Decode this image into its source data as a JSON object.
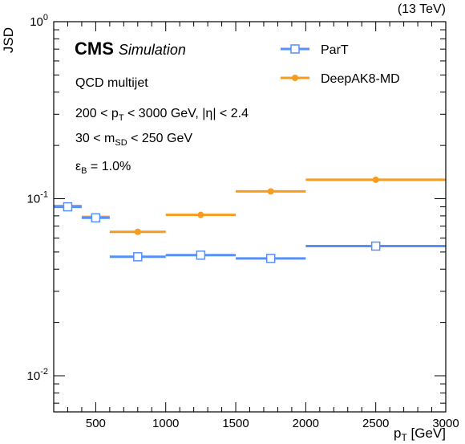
{
  "header": {
    "lumi": "(13 TeV)",
    "cms": "CMS",
    "simulation": "Simulation"
  },
  "annotations": {
    "line1": "QCD multijet",
    "line2_a": "200 < p",
    "line2_sub": "T",
    "line2_b": " < 3000 GeV, |η| < 2.4",
    "line3_a": "30 < m",
    "line3_sub": "SD",
    "line3_b": " < 250 GeV",
    "line4_a": "ε",
    "line4_sub": "B",
    "line4_b": " = 1.0%"
  },
  "axes": {
    "xlabel_main": "p",
    "xlabel_sub": "T",
    "xlabel_unit": " [GeV]",
    "ylabel": "JSD",
    "xticks": [
      "500",
      "1000",
      "1500",
      "2000",
      "2500",
      "3000"
    ],
    "yticks": [
      {
        "base": "10",
        "exp": "-2"
      },
      {
        "base": "10",
        "exp": "-1"
      },
      {
        "base": "1",
        "exp": "0",
        "text": "10",
        "sup": "0"
      }
    ]
  },
  "colors": {
    "ParT": "#5790fc",
    "DeepAK8-MD": "#f89c20"
  },
  "chart_data": {
    "type": "scatter",
    "xlabel": "pT [GeV]",
    "ylabel": "JSD",
    "xlim": [
      200,
      3000
    ],
    "ylim": [
      0.005,
      1
    ],
    "yscale": "log",
    "legend_position": "top-right",
    "bins": [
      [
        200,
        400
      ],
      [
        400,
        600
      ],
      [
        600,
        1000
      ],
      [
        1000,
        1500
      ],
      [
        1500,
        2000
      ],
      [
        2000,
        3000
      ]
    ],
    "x": [
      300,
      500,
      800,
      1250,
      1750,
      2500
    ],
    "series": [
      {
        "name": "ParT",
        "marker": "open-square",
        "values": [
          0.09,
          0.078,
          0.047,
          0.048,
          0.046,
          0.054
        ]
      },
      {
        "name": "DeepAK8-MD",
        "marker": "filled-circle",
        "values": [
          0.091,
          0.079,
          0.065,
          0.081,
          0.11,
          0.128
        ]
      }
    ]
  }
}
